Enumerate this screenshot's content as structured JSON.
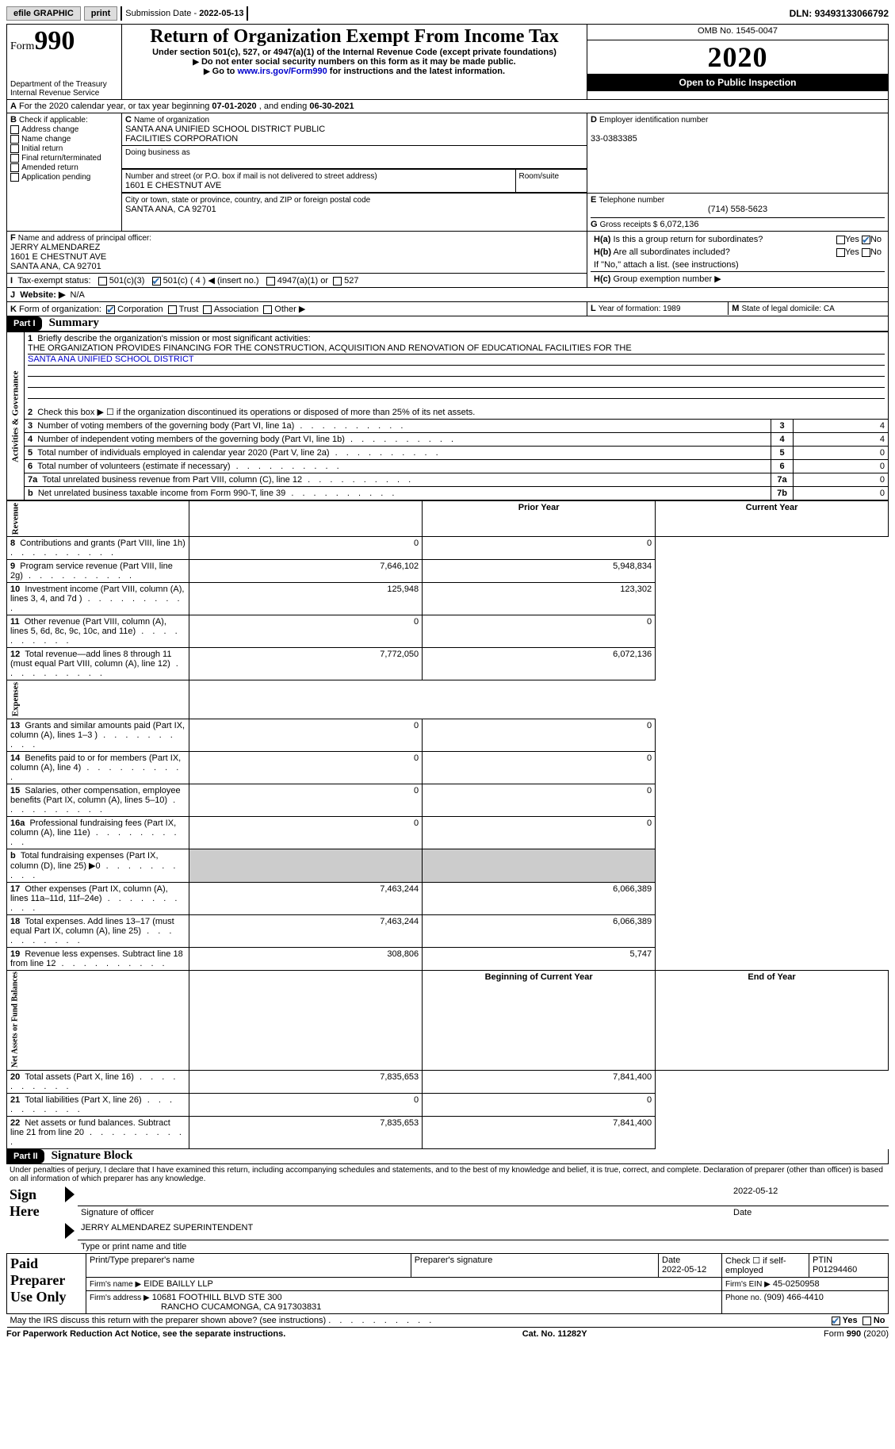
{
  "topbar": {
    "efile_label": "efile GRAPHIC",
    "print_btn": "print",
    "submission_label": "Submission Date - ",
    "submission_date": "2022-05-13",
    "dln_label": "DLN: ",
    "dln": "93493133066792"
  },
  "header": {
    "form_word": "Form",
    "form_num": "990",
    "dept": "Department of the Treasury",
    "irs": "Internal Revenue Service",
    "title": "Return of Organization Exempt From Income Tax",
    "subtitle": "Under section 501(c), 527, or 4947(a)(1) of the Internal Revenue Code (except private foundations)",
    "nossn": "Do not enter social security numbers on this form as it may be made public.",
    "goto_pre": "Go to ",
    "goto_link": "www.irs.gov/Form990",
    "goto_post": " for instructions and the latest information.",
    "omb": "OMB No. 1545-0047",
    "year": "2020",
    "open": "Open to Public Inspection"
  },
  "periodA": {
    "text_pre": "For the 2020 calendar year, or tax year beginning ",
    "begin": "07-01-2020",
    "mid": " , and ending ",
    "end": "06-30-2021"
  },
  "boxB": {
    "label": "Check if applicable:",
    "items": [
      "Address change",
      "Name change",
      "Initial return",
      "Final return/terminated",
      "Amended return",
      "Application pending"
    ]
  },
  "boxC": {
    "label": "Name of organization",
    "name1": "SANTA ANA UNIFIED SCHOOL DISTRICT PUBLIC",
    "name2": "FACILITIES CORPORATION",
    "dba_label": "Doing business as",
    "dba": "",
    "street_label": "Number and street (or P.O. box if mail is not delivered to street address)",
    "room_label": "Room/suite",
    "street": "1601 E CHESTNUT AVE",
    "city_label": "City or town, state or province, country, and ZIP or foreign postal code",
    "city": "SANTA ANA, CA  92701"
  },
  "boxD": {
    "label": "Employer identification number",
    "ein": "33-0383385"
  },
  "boxE": {
    "label": "Telephone number",
    "phone": "(714) 558-5623"
  },
  "boxG": {
    "label": "Gross receipts $",
    "amount": "6,072,136"
  },
  "boxF": {
    "label": "Name and address of principal officer:",
    "name": "JERRY ALMENDAREZ",
    "street": "1601 E CHESTNUT AVE",
    "city": "SANTA ANA, CA  92701"
  },
  "boxH": {
    "a": "Is this a group return for subordinates?",
    "b": "Are all subordinates included?",
    "note": "If \"No,\" attach a list. (see instructions)",
    "c_label": "Group exemption number ▶",
    "yes": "Yes",
    "no": "No"
  },
  "rowI": {
    "label": "Tax-exempt status:",
    "c3": "501(c)(3)",
    "c": "501(c) ( 4 ) ◀ (insert no.)",
    "a4947": "4947(a)(1) or",
    "s527": "527"
  },
  "rowJ": {
    "label": "Website: ▶",
    "value": "N/A"
  },
  "rowK": {
    "label": "Form of organization:",
    "corp": "Corporation",
    "trust": "Trust",
    "assoc": "Association",
    "other": "Other ▶"
  },
  "rowLM": {
    "L": "Year of formation: 1989",
    "M": "State of legal domicile: CA"
  },
  "part1": {
    "label": "Part I",
    "title": "Summary"
  },
  "brief": {
    "num": "1",
    "text": "Briefly describe the organization's mission or most significant activities:",
    "line1": "THE ORGANIZATION PROVIDES FINANCING FOR THE CONSTRUCTION, ACQUISITION AND RENOVATION OF EDUCATIONAL FACILITIES FOR THE",
    "line2": "SANTA ANA UNIFIED SCHOOL DISTRICT"
  },
  "gov": {
    "label": "Activities & Governance",
    "rows": [
      {
        "n": "2",
        "t": "Check this box ▶ ☐  if the organization discontinued its operations or disposed of more than 25% of its net assets.",
        "box": "",
        "v": ""
      },
      {
        "n": "3",
        "t": "Number of voting members of the governing body (Part VI, line 1a)",
        "box": "3",
        "v": "4"
      },
      {
        "n": "4",
        "t": "Number of independent voting members of the governing body (Part VI, line 1b)",
        "box": "4",
        "v": "4"
      },
      {
        "n": "5",
        "t": "Total number of individuals employed in calendar year 2020 (Part V, line 2a)",
        "box": "5",
        "v": "0"
      },
      {
        "n": "6",
        "t": "Total number of volunteers (estimate if necessary)",
        "box": "6",
        "v": "0"
      },
      {
        "n": "7a",
        "t": "Total unrelated business revenue from Part VIII, column (C), line 12",
        "box": "7a",
        "v": "0"
      },
      {
        "n": "b",
        "t": "Net unrelated business taxable income from Form 990-T, line 39",
        "box": "7b",
        "v": "0"
      }
    ]
  },
  "revhead": {
    "prior": "Prior Year",
    "curr": "Current Year"
  },
  "revenue": {
    "label": "Revenue",
    "rows": [
      {
        "n": "8",
        "t": "Contributions and grants (Part VIII, line 1h)",
        "p": "0",
        "c": "0"
      },
      {
        "n": "9",
        "t": "Program service revenue (Part VIII, line 2g)",
        "p": "7,646,102",
        "c": "5,948,834"
      },
      {
        "n": "10",
        "t": "Investment income (Part VIII, column (A), lines 3, 4, and 7d )",
        "p": "125,948",
        "c": "123,302"
      },
      {
        "n": "11",
        "t": "Other revenue (Part VIII, column (A), lines 5, 6d, 8c, 9c, 10c, and 11e)",
        "p": "0",
        "c": "0"
      },
      {
        "n": "12",
        "t": "Total revenue—add lines 8 through 11 (must equal Part VIII, column (A), line 12)",
        "p": "7,772,050",
        "c": "6,072,136"
      }
    ]
  },
  "expenses": {
    "label": "Expenses",
    "rows": [
      {
        "n": "13",
        "t": "Grants and similar amounts paid (Part IX, column (A), lines 1–3 )",
        "p": "0",
        "c": "0"
      },
      {
        "n": "14",
        "t": "Benefits paid to or for members (Part IX, column (A), line 4)",
        "p": "0",
        "c": "0"
      },
      {
        "n": "15",
        "t": "Salaries, other compensation, employee benefits (Part IX, column (A), lines 5–10)",
        "p": "0",
        "c": "0"
      },
      {
        "n": "16a",
        "t": "Professional fundraising fees (Part IX, column (A), line 11e)",
        "p": "0",
        "c": "0"
      },
      {
        "n": "b",
        "t": "Total fundraising expenses (Part IX, column (D), line 25) ▶0",
        "p": "",
        "c": "",
        "shade": true
      },
      {
        "n": "17",
        "t": "Other expenses (Part IX, column (A), lines 11a–11d, 11f–24e)",
        "p": "7,463,244",
        "c": "6,066,389"
      },
      {
        "n": "18",
        "t": "Total expenses. Add lines 13–17 (must equal Part IX, column (A), line 25)",
        "p": "7,463,244",
        "c": "6,066,389"
      },
      {
        "n": "19",
        "t": "Revenue less expenses. Subtract line 18 from line 12",
        "p": "308,806",
        "c": "5,747"
      }
    ]
  },
  "nethead": {
    "b": "Beginning of Current Year",
    "e": "End of Year"
  },
  "net": {
    "label": "Net Assets or Fund Balances",
    "rows": [
      {
        "n": "20",
        "t": "Total assets (Part X, line 16)",
        "p": "7,835,653",
        "c": "7,841,400"
      },
      {
        "n": "21",
        "t": "Total liabilities (Part X, line 26)",
        "p": "0",
        "c": "0"
      },
      {
        "n": "22",
        "t": "Net assets or fund balances. Subtract line 21 from line 20",
        "p": "7,835,653",
        "c": "7,841,400"
      }
    ]
  },
  "part2": {
    "label": "Part II",
    "title": "Signature Block"
  },
  "penalty": "Under penalties of perjury, I declare that I have examined this return, including accompanying schedules and statements, and to the best of my knowledge and belief, it is true, correct, and complete. Declaration of preparer (other than officer) is based on all information of which preparer has any knowledge.",
  "sign": {
    "here": "Sign Here",
    "sig_label": "Signature of officer",
    "date_label": "Date",
    "date": "2022-05-12",
    "name": "JERRY ALMENDAREZ  SUPERINTENDENT",
    "name_label": "Type or print name and title"
  },
  "paid": {
    "label": "Paid Preparer Use Only",
    "col_name": "Print/Type preparer's name",
    "col_sig": "Preparer's signature",
    "col_date": "Date",
    "date": "2022-05-12",
    "self": "Check ☐ if self-employed",
    "ptin_label": "PTIN",
    "ptin": "P01294460",
    "firm_name_label": "Firm's name    ▶",
    "firm_name": "EIDE BAILLY LLP",
    "firm_ein_label": "Firm's EIN ▶",
    "firm_ein": "45-0250958",
    "firm_addr_label": "Firm's address ▶",
    "firm_addr1": "10681 FOOTHILL BLVD STE 300",
    "firm_addr2": "RANCHO CUCAMONGA, CA  917303831",
    "phone_label": "Phone no.",
    "phone": "(909) 466-4410"
  },
  "discuss": "May the IRS discuss this return with the preparer shown above? (see instructions)",
  "footer": {
    "pra": "For Paperwork Reduction Act Notice, see the separate instructions.",
    "cat": "Cat. No. 11282Y",
    "form": "Form 990 (2020)"
  }
}
